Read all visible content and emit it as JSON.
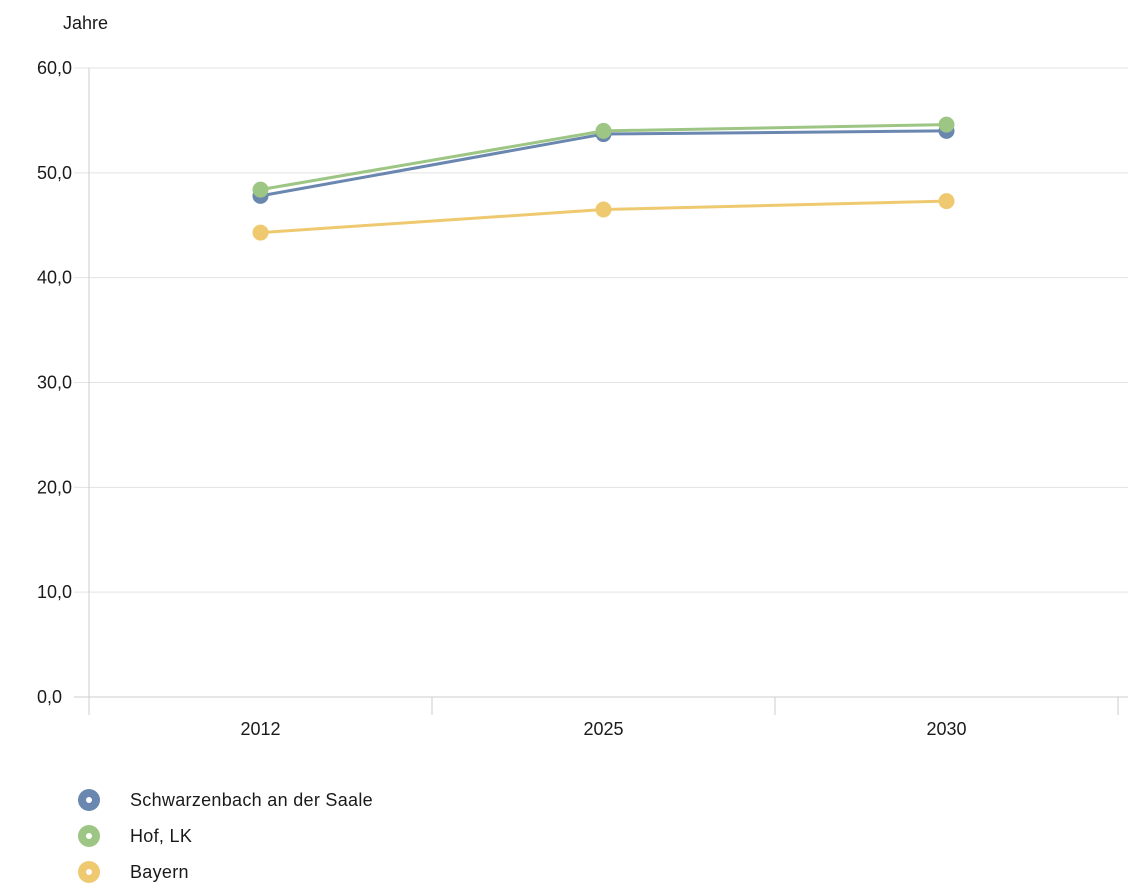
{
  "chart_data": {
    "type": "line",
    "ylabel": "Jahre",
    "xlabel": "",
    "categories": [
      "2012",
      "2025",
      "2030"
    ],
    "ylim": [
      0,
      60
    ],
    "yticks": [
      "0,0",
      "10,0",
      "20,0",
      "30,0",
      "40,0",
      "50,0",
      "60,0"
    ],
    "grid": true,
    "legend_position": "bottom-left",
    "series": [
      {
        "name": "Schwarzenbach an der Saale",
        "color": "#6a87b0",
        "values": [
          47.8,
          53.7,
          54.0
        ]
      },
      {
        "name": "Hof, LK",
        "color": "#9dc584",
        "values": [
          48.4,
          54.0,
          54.6
        ]
      },
      {
        "name": "Bayern",
        "color": "#efc96f",
        "values": [
          44.3,
          46.5,
          47.3
        ]
      }
    ]
  }
}
